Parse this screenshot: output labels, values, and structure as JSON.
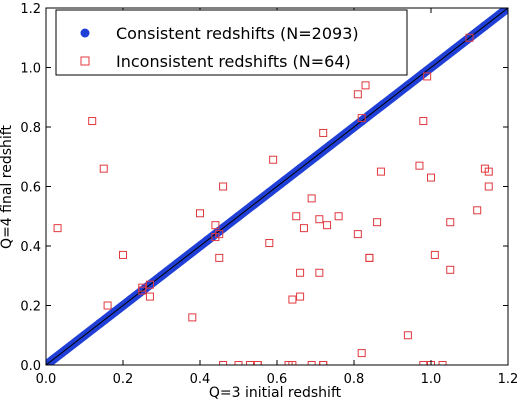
{
  "chart_data": {
    "type": "scatter",
    "xlabel": "Q=3 initial redshift",
    "ylabel": "Q=4 final redshift",
    "xlim": [
      0.0,
      1.2
    ],
    "ylim": [
      0.0,
      1.2
    ],
    "xticks": [
      "0.0",
      "0.2",
      "0.4",
      "0.6",
      "0.8",
      "1.0",
      "1.2"
    ],
    "yticks": [
      "0.0",
      "0.2",
      "0.4",
      "0.6",
      "0.8",
      "1.0",
      "1.2"
    ],
    "grid": false,
    "legend_position": "top-left",
    "reference_line": {
      "x": [
        0.0,
        1.2
      ],
      "y": [
        0.0,
        1.2
      ],
      "color": "#000000"
    },
    "series": [
      {
        "name": "Consistent redshifts (N=2093)",
        "marker": "filled-circle",
        "color": "#1f3fd6",
        "line_on_diagonal": {
          "x_range": [
            0.0,
            1.2
          ]
        },
        "x": [
          0.0,
          0.02,
          0.05,
          0.08,
          0.1,
          0.14,
          0.18,
          0.22,
          0.26,
          0.3,
          0.34,
          0.38,
          0.42,
          0.46,
          0.5,
          0.54,
          0.58,
          0.62,
          0.66,
          0.7,
          0.74,
          0.78,
          0.82,
          0.86,
          0.9,
          0.94,
          0.98,
          1.02,
          1.06,
          1.1,
          1.14,
          1.18,
          1.2
        ],
        "y": [
          0.0,
          0.02,
          0.05,
          0.08,
          0.1,
          0.14,
          0.18,
          0.22,
          0.26,
          0.3,
          0.34,
          0.38,
          0.42,
          0.46,
          0.5,
          0.54,
          0.58,
          0.62,
          0.66,
          0.7,
          0.74,
          0.78,
          0.82,
          0.86,
          0.9,
          0.94,
          0.98,
          1.02,
          1.06,
          1.1,
          1.14,
          1.18,
          1.2
        ]
      },
      {
        "name": "Inconsistent redshifts (N=64)",
        "marker": "open-square",
        "color": "#e0393e",
        "x": [
          0.03,
          0.12,
          0.15,
          0.16,
          0.2,
          0.25,
          0.27,
          0.38,
          0.4,
          0.44,
          0.45,
          0.45,
          0.46,
          0.46,
          0.53,
          0.55,
          0.58,
          0.59,
          0.63,
          0.64,
          0.65,
          0.66,
          0.66,
          0.67,
          0.69,
          0.71,
          0.71,
          0.72,
          0.72,
          0.73,
          0.76,
          0.81,
          0.81,
          0.82,
          0.83,
          0.84,
          0.86,
          0.87,
          0.94,
          0.97,
          0.98,
          0.98,
          0.99,
          1.0,
          1.0,
          1.01,
          1.05,
          1.05,
          1.1,
          1.12,
          1.14,
          1.15,
          1.15,
          0.82,
          0.84,
          0.69,
          0.72,
          0.64,
          0.55,
          0.5,
          0.27,
          0.25,
          0.44,
          1.03
        ],
        "y": [
          0.46,
          0.82,
          0.66,
          0.2,
          0.37,
          0.26,
          0.23,
          0.16,
          0.51,
          0.47,
          0.36,
          0.44,
          0.6,
          0.0,
          0.0,
          0.0,
          0.41,
          0.69,
          0.0,
          0.22,
          0.5,
          0.31,
          0.23,
          0.46,
          0.56,
          0.49,
          0.31,
          0.78,
          0.0,
          0.47,
          0.5,
          0.91,
          0.44,
          0.04,
          0.94,
          0.36,
          0.48,
          0.65,
          0.1,
          0.67,
          0.0,
          0.82,
          0.97,
          0.63,
          0.0,
          0.37,
          0.48,
          0.32,
          1.1,
          0.52,
          0.66,
          0.6,
          0.65,
          0.83,
          0.36,
          0.0,
          0.0,
          0.0,
          0.0,
          0.0,
          0.27,
          0.25,
          0.43,
          0.0
        ]
      }
    ]
  }
}
